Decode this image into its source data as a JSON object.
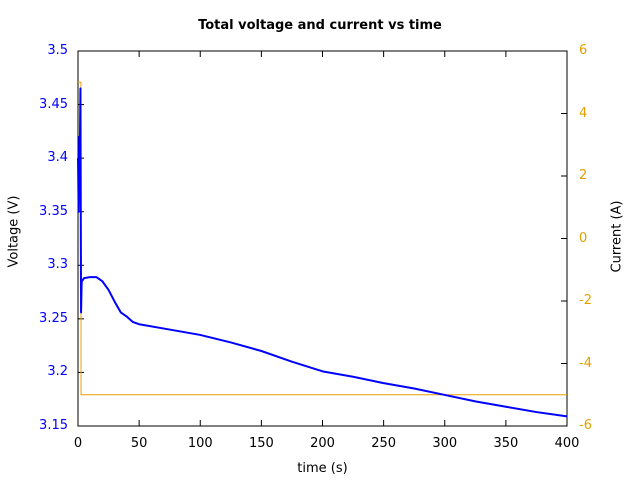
{
  "chart_data": {
    "type": "line",
    "title": "Total voltage and current vs time",
    "xlabel": "time (s)",
    "ylabel": "Voltage (V)",
    "y2label": "Current (A)",
    "xlim": [
      0,
      400
    ],
    "ylim": [
      3.15,
      3.5
    ],
    "y2lim": [
      -6,
      6
    ],
    "grid": false,
    "x_ticks": [
      "0",
      "50",
      "100",
      "150",
      "200",
      "250",
      "300",
      "350",
      "400"
    ],
    "y_ticks": [
      "3.15",
      "3.2",
      "3.25",
      "3.3",
      "3.35",
      "3.4",
      "3.45",
      "3.5"
    ],
    "y2_ticks": [
      "-6",
      "-4",
      "-2",
      "0",
      "2",
      "4",
      "6"
    ],
    "series": [
      {
        "name": "Voltage",
        "axis": "left",
        "color": "#0000ff",
        "x": [
          0,
          0.5,
          1,
          1.5,
          2,
          2.5,
          3,
          5,
          10,
          15,
          20,
          25,
          30,
          35,
          40,
          45,
          50,
          75,
          100,
          125,
          150,
          175,
          200,
          225,
          250,
          275,
          300,
          325,
          350,
          375,
          400
        ],
        "values": [
          3.4,
          3.35,
          3.42,
          3.4,
          3.465,
          3.256,
          3.285,
          3.288,
          3.289,
          3.289,
          3.285,
          3.277,
          3.266,
          3.256,
          3.252,
          3.247,
          3.245,
          3.24,
          3.235,
          3.228,
          3.22,
          3.21,
          3.201,
          3.196,
          3.19,
          3.185,
          3.179,
          3.173,
          3.168,
          3.163,
          3.159
        ]
      },
      {
        "name": "Current",
        "axis": "right",
        "color": "#e8a000",
        "x": [
          0,
          0.1,
          2.4,
          2.5,
          400
        ],
        "values": [
          5.0,
          5.0,
          5.0,
          -5.0,
          -5.0
        ]
      }
    ]
  }
}
